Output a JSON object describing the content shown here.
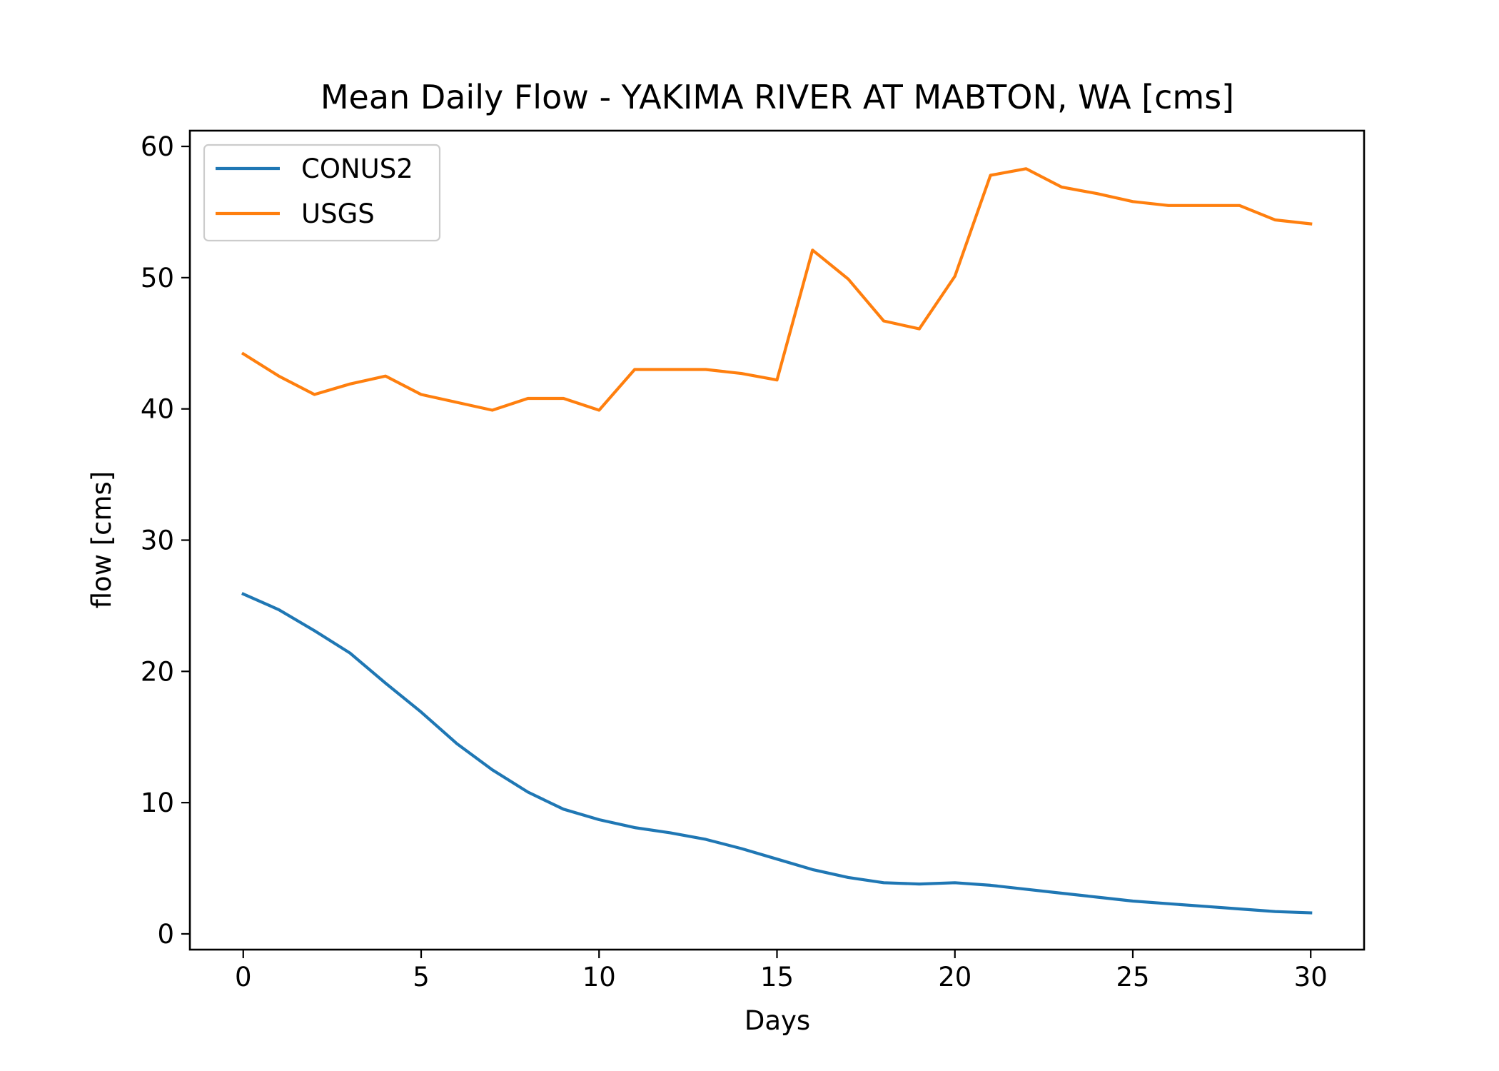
{
  "chart_data": {
    "type": "line",
    "title": "Mean Daily Flow - YAKIMA RIVER AT MABTON, WA [cms]",
    "xlabel": "Days",
    "ylabel": "flow [cms]",
    "xlim": [
      -1.5,
      31.5
    ],
    "ylim": [
      -1.2,
      61.2
    ],
    "xticks": [
      0,
      5,
      10,
      15,
      20,
      25,
      30
    ],
    "yticks": [
      0,
      10,
      20,
      30,
      40,
      50,
      60
    ],
    "grid": false,
    "legend": "upper-left",
    "x": [
      0,
      1,
      2,
      3,
      4,
      5,
      6,
      7,
      8,
      9,
      10,
      11,
      12,
      13,
      14,
      15,
      16,
      17,
      18,
      19,
      20,
      21,
      22,
      23,
      24,
      25,
      26,
      27,
      28,
      29,
      30
    ],
    "series": [
      {
        "name": "CONUS2",
        "color": "#1f77b4",
        "values": [
          25.9,
          24.7,
          23.1,
          21.4,
          19.1,
          16.9,
          14.5,
          12.5,
          10.8,
          9.5,
          8.7,
          8.1,
          7.7,
          7.2,
          6.5,
          5.7,
          4.9,
          4.3,
          3.9,
          3.8,
          3.9,
          3.7,
          3.4,
          3.1,
          2.8,
          2.5,
          2.3,
          2.1,
          1.9,
          1.7,
          1.6
        ]
      },
      {
        "name": "USGS",
        "color": "#ff7f0e",
        "values": [
          44.2,
          42.5,
          41.1,
          41.9,
          42.5,
          41.1,
          40.5,
          39.9,
          40.8,
          40.8,
          39.9,
          43.0,
          43.0,
          43.0,
          42.7,
          42.2,
          52.1,
          49.9,
          46.7,
          46.1,
          50.1,
          57.8,
          58.3,
          56.9,
          56.4,
          55.8,
          55.5,
          55.5,
          55.5,
          54.4,
          54.1
        ]
      }
    ]
  }
}
